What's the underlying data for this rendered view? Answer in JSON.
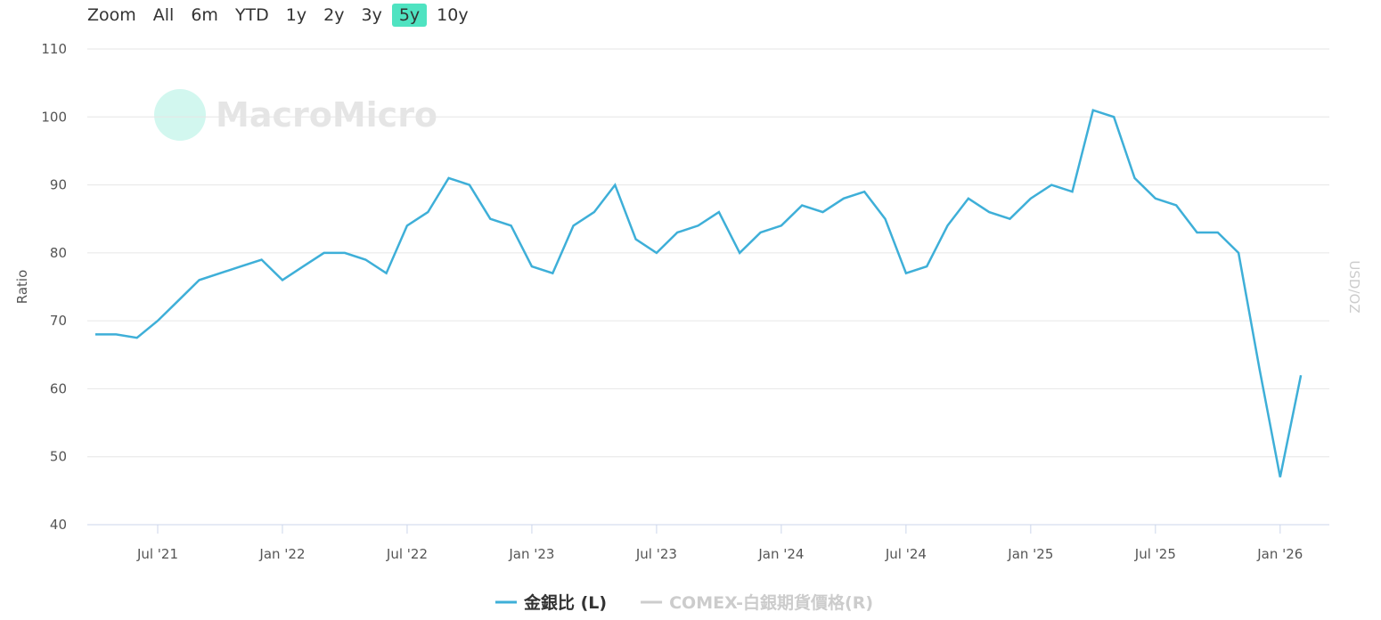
{
  "zoom": {
    "label": "Zoom",
    "options": [
      "All",
      "6m",
      "YTD",
      "1y",
      "2y",
      "3y",
      "5y",
      "10y"
    ],
    "selected": "5y"
  },
  "watermark": "MacroMicro",
  "chart_data": {
    "type": "line",
    "y_label": "Ratio",
    "y2_label": "USD/OZ",
    "categories": [
      null,
      null,
      null,
      "Jul '21",
      null,
      null,
      null,
      null,
      null,
      "Jan '22",
      null,
      null,
      null,
      null,
      null,
      "Jul '22",
      null,
      null,
      null,
      null,
      null,
      "Jan '23",
      null,
      null,
      null,
      null,
      null,
      "Jul '23",
      null,
      null,
      null,
      null,
      null,
      "Jan '24",
      null,
      null,
      null,
      null,
      null,
      "Jul '24",
      null,
      null,
      null,
      null,
      null,
      "Jan '25",
      null,
      null,
      null,
      null,
      null,
      "Jul '25",
      null,
      null,
      null,
      null,
      null,
      "Jan '26",
      null
    ],
    "series": [
      {
        "name": "金銀比 (L)",
        "color": "#3eafd8",
        "values": [
          68,
          68,
          67.5,
          70,
          73,
          76,
          77,
          78,
          79,
          76,
          78,
          80,
          80,
          79,
          77,
          84,
          86,
          91,
          90,
          85,
          84,
          78,
          77,
          84,
          86,
          90,
          82,
          80,
          83,
          84,
          86,
          80,
          83,
          84,
          87,
          86,
          88,
          89,
          85,
          77,
          78,
          84,
          88,
          86,
          85,
          88,
          90,
          89,
          101,
          100,
          91,
          88,
          87,
          83,
          83,
          80,
          63,
          47,
          62
        ]
      },
      {
        "name": "COMEX-白銀期貨價格(R)",
        "color": "#cccccc",
        "axis": "y2",
        "visible": false,
        "values": [
          null,
          null,
          null,
          null,
          null,
          null,
          null,
          null,
          null,
          null,
          null,
          null,
          null,
          null,
          null,
          null,
          null,
          null,
          null,
          null,
          null,
          null,
          null,
          null,
          null,
          null,
          null,
          null,
          null,
          null,
          null,
          null,
          null,
          null,
          null,
          null,
          null,
          null,
          null,
          null,
          null,
          null,
          null,
          null,
          null,
          null,
          null,
          null,
          null,
          null,
          null,
          null,
          null,
          null,
          null,
          null,
          null,
          null,
          null
        ]
      }
    ],
    "ylim": [
      40,
      110
    ],
    "yticks": [
      40,
      50,
      60,
      70,
      80,
      90,
      100,
      110
    ],
    "grid": true
  }
}
